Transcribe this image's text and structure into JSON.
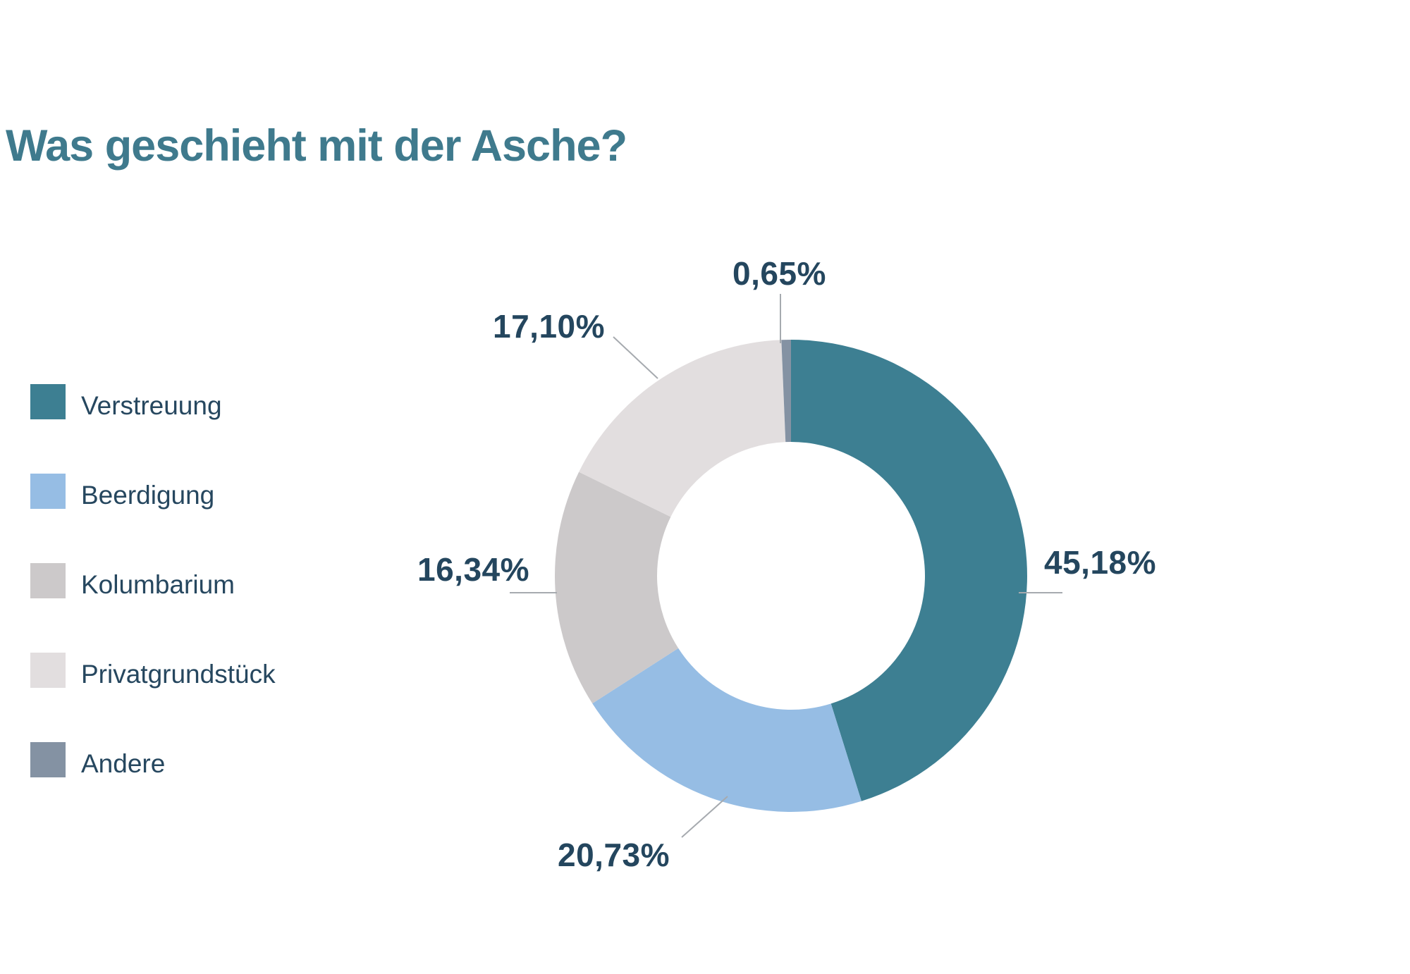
{
  "title": "Was geschieht mit der Asche?",
  "colors": {
    "title_text": "#3F7A8D",
    "label_text": "#24465E",
    "legend_text": "#26475F",
    "leader_line": "#A6AAAF",
    "background": "#FFFFFF"
  },
  "chart_data": {
    "type": "pie",
    "subtype": "donut",
    "title": "Was geschieht mit der Asche?",
    "start_angle_deg": 0,
    "direction": "clockwise",
    "legend_position": "left",
    "inner_radius_ratio": 0.567,
    "categories": [
      "Verstreuung",
      "Beerdigung",
      "Kolumbarium",
      "Privatgrundstück",
      "Andere"
    ],
    "values": [
      45.18,
      20.73,
      16.34,
      17.1,
      0.65
    ],
    "series": [
      {
        "label": "Verstreuung",
        "value": 45.18,
        "display_value": "45,18%",
        "color": "#3D7F92"
      },
      {
        "label": "Beerdigung",
        "value": 20.73,
        "display_value": "20,73%",
        "color": "#96BDE4"
      },
      {
        "label": "Kolumbarium",
        "value": 16.34,
        "display_value": "16,34%",
        "color": "#CCC9CA"
      },
      {
        "label": "Privatgrundstück",
        "value": 17.1,
        "display_value": "17,10%",
        "color": "#E2DEDF"
      },
      {
        "label": "Andere",
        "value": 0.65,
        "display_value": "0,65%",
        "color": "#8492A3"
      }
    ]
  }
}
